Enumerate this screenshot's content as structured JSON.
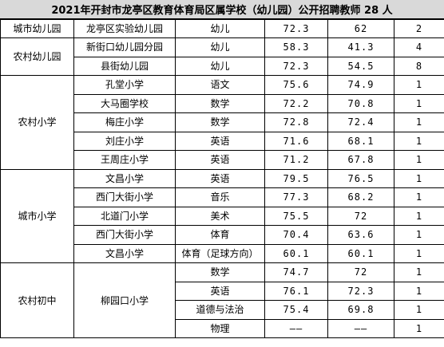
{
  "title": "2021年开封市龙亭区教育体育局区属学校（幼儿园）公开招聘教师 28 人",
  "rows": [
    {
      "group": "城市幼儿园",
      "school": "龙亭区实验幼儿园",
      "subject": "幼儿",
      "s1": "72.3",
      "s2": "62",
      "n": "2"
    },
    {
      "group": "农村幼儿园",
      "school": "新街口幼儿园分园",
      "subject": "幼儿",
      "s1": "58.3",
      "s2": "41.3",
      "n": "4"
    },
    {
      "group": "",
      "school": "县街幼儿园",
      "subject": "幼儿",
      "s1": "72.3",
      "s2": "54.5",
      "n": "8"
    },
    {
      "group": "农村小学",
      "school": "孔堂小学",
      "subject": "语文",
      "s1": "75.6",
      "s2": "74.9",
      "n": "1"
    },
    {
      "group": "",
      "school": "大马圈学校",
      "subject": "数学",
      "s1": "72.2",
      "s2": "70.8",
      "n": "1"
    },
    {
      "group": "",
      "school": "梅庄小学",
      "subject": "数学",
      "s1": "72.8",
      "s2": "72.4",
      "n": "1"
    },
    {
      "group": "",
      "school": "刘庄小学",
      "subject": "英语",
      "s1": "71.6",
      "s2": "68.1",
      "n": "1"
    },
    {
      "group": "",
      "school": "王周庄小学",
      "subject": "英语",
      "s1": "71.2",
      "s2": "67.8",
      "n": "1"
    },
    {
      "group": "城市小学",
      "school": "文昌小学",
      "subject": "英语",
      "s1": "79.5",
      "s2": "76.5",
      "n": "1"
    },
    {
      "group": "",
      "school": "西门大街小学",
      "subject": "音乐",
      "s1": "77.3",
      "s2": "68.2",
      "n": "1"
    },
    {
      "group": "",
      "school": "北道门小学",
      "subject": "美术",
      "s1": "75.5",
      "s2": "72",
      "n": "1"
    },
    {
      "group": "",
      "school": "西门大街小学",
      "subject": "体育",
      "s1": "70.4",
      "s2": "63.6",
      "n": "1"
    },
    {
      "group": "",
      "school": "文昌小学",
      "subject": "体育（足球方向）",
      "s1": "60.1",
      "s2": "60.1",
      "n": "1"
    },
    {
      "group": "农村初中",
      "school": "柳园口小学",
      "subject": "数学",
      "s1": "74.7",
      "s2": "72",
      "n": "1"
    },
    {
      "group": "",
      "school": "",
      "subject": "英语",
      "s1": "76.1",
      "s2": "72.3",
      "n": "1"
    },
    {
      "group": "",
      "school": "",
      "subject": "道德与法治",
      "s1": "75.4",
      "s2": "69.8",
      "n": "1"
    },
    {
      "group": "",
      "school": "",
      "subject": "物理",
      "s1": "——",
      "s2": "——",
      "n": "1"
    }
  ]
}
